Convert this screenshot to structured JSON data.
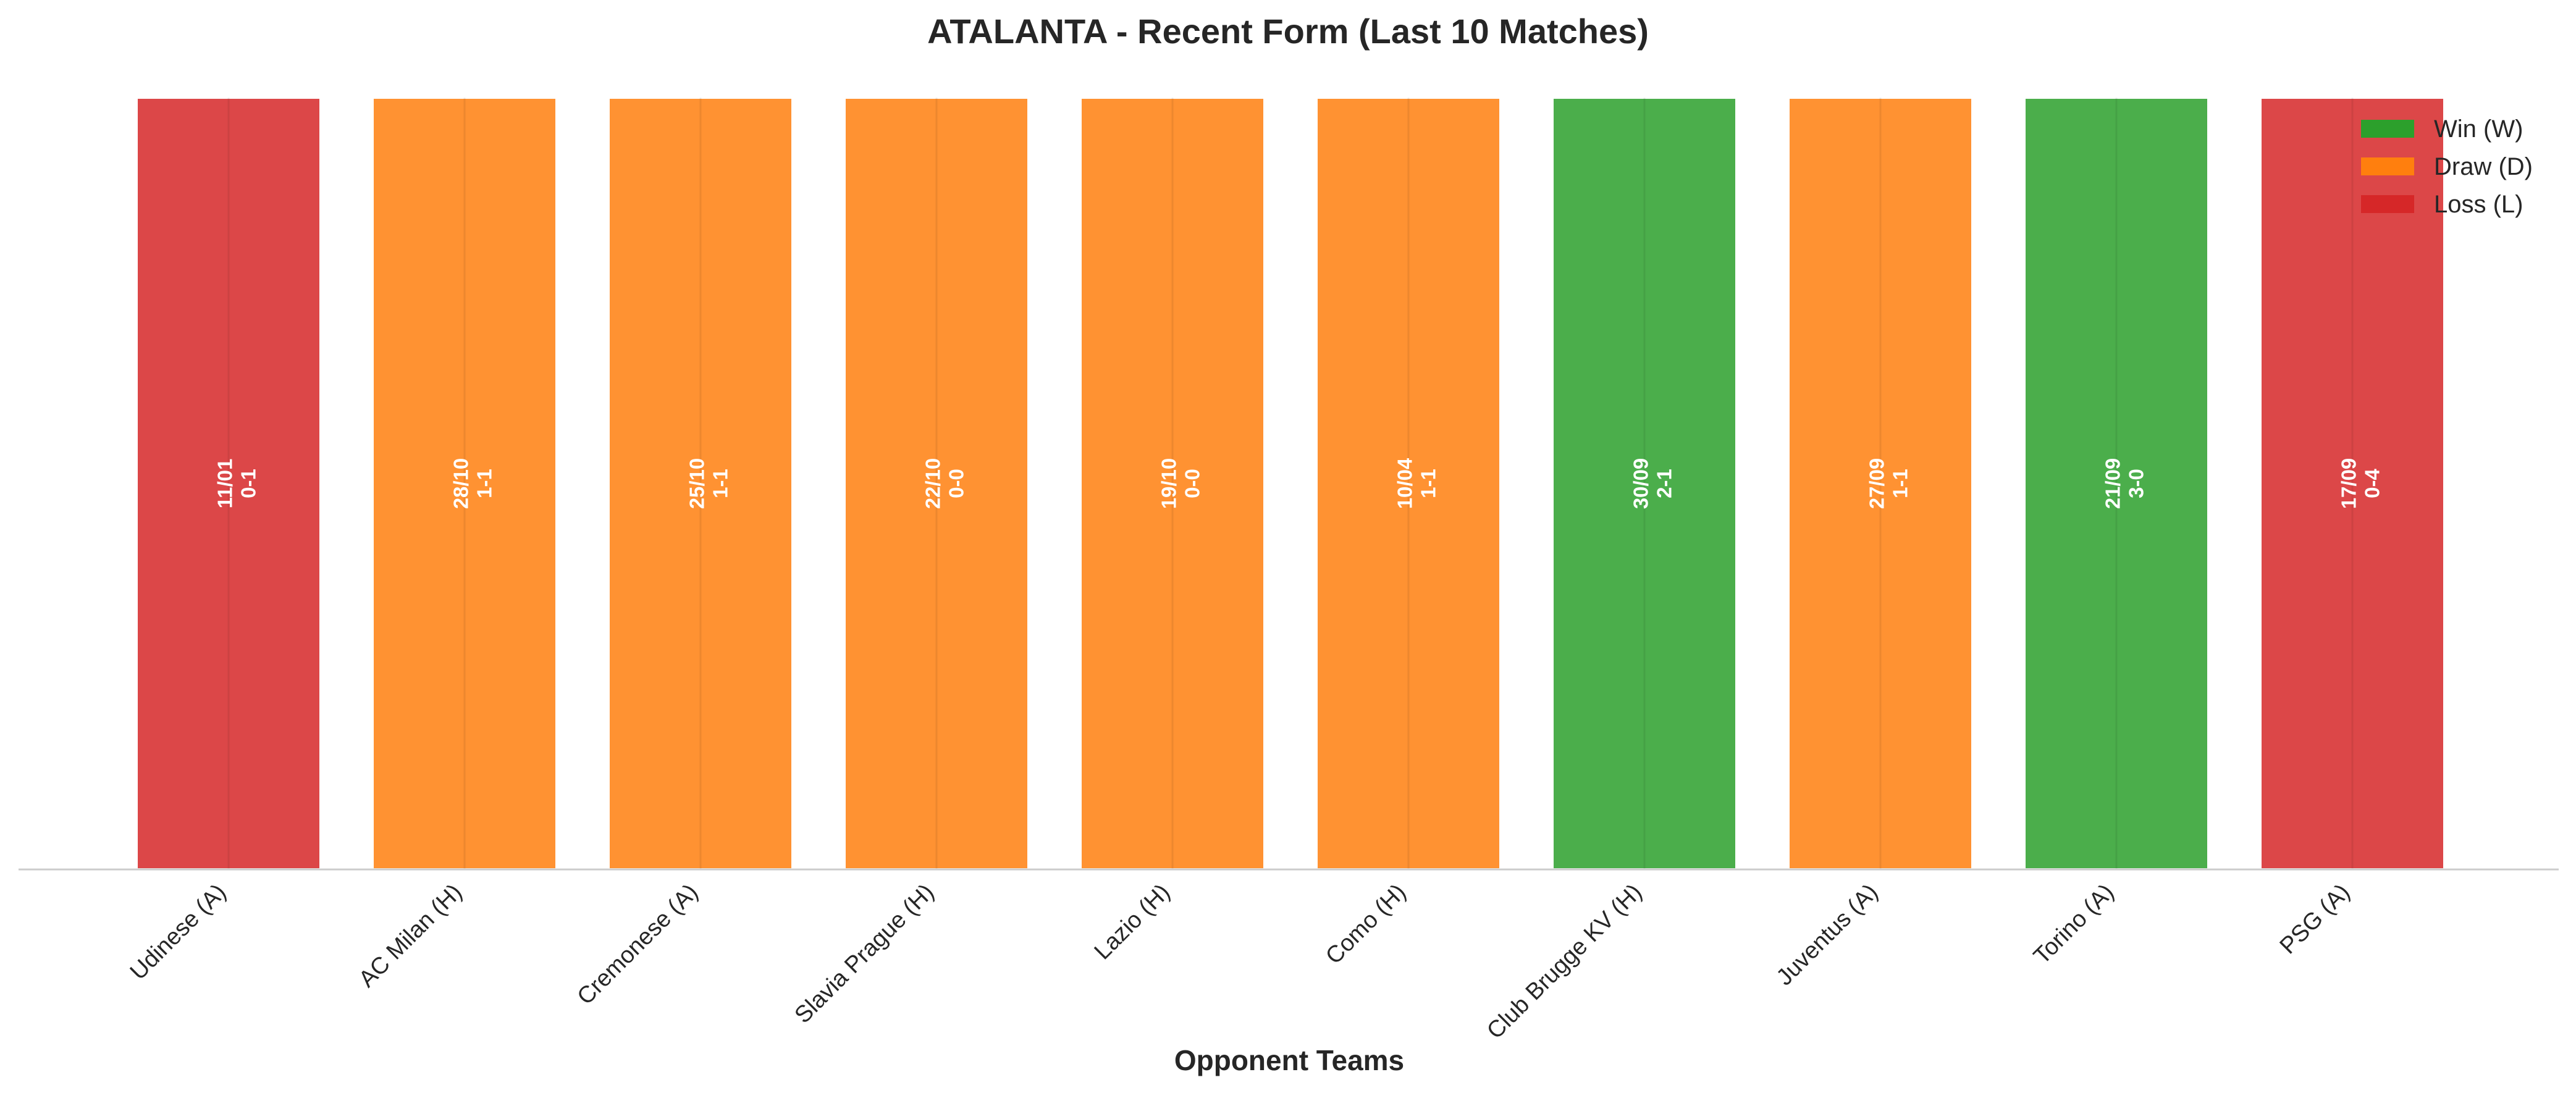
{
  "chart_data": {
    "type": "bar",
    "title": "ATALANTA - Recent Form (Last 10 Matches)",
    "xlabel": "Opponent Teams",
    "ylabel": "",
    "ylim": [
      0,
      1
    ],
    "grid": false,
    "legend_position": "top-right",
    "categories": [
      "Udinese (A)",
      "AC Milan (H)",
      "Cremonese (A)",
      "Slavia Prague (H)",
      "Lazio (H)",
      "Como (H)",
      "Club Brugge KV (H)",
      "Juventus (A)",
      "Torino (A)",
      "PSG (A)"
    ],
    "values": [
      1,
      1,
      1,
      1,
      1,
      1,
      1,
      1,
      1,
      1
    ],
    "results": [
      "L",
      "D",
      "D",
      "D",
      "D",
      "D",
      "W",
      "D",
      "W",
      "L"
    ],
    "dates": [
      "11/01",
      "28/10",
      "25/10",
      "22/10",
      "19/10",
      "10/04",
      "30/09",
      "27/09",
      "21/09",
      "17/09"
    ],
    "scores": [
      "0-1",
      "1-1",
      "1-1",
      "0-0",
      "0-0",
      "1-1",
      "2-1",
      "1-1",
      "3-0",
      "0-4"
    ],
    "legend": [
      {
        "key": "W",
        "label": "Win (W)",
        "color": "#2ca02c"
      },
      {
        "key": "D",
        "label": "Draw (D)",
        "color": "#ff7f0e"
      },
      {
        "key": "L",
        "label": "Loss (L)",
        "color": "#d62728"
      }
    ],
    "colors": {
      "W": "#2ca02c",
      "D": "#ff7f0e",
      "L": "#d62728"
    }
  }
}
